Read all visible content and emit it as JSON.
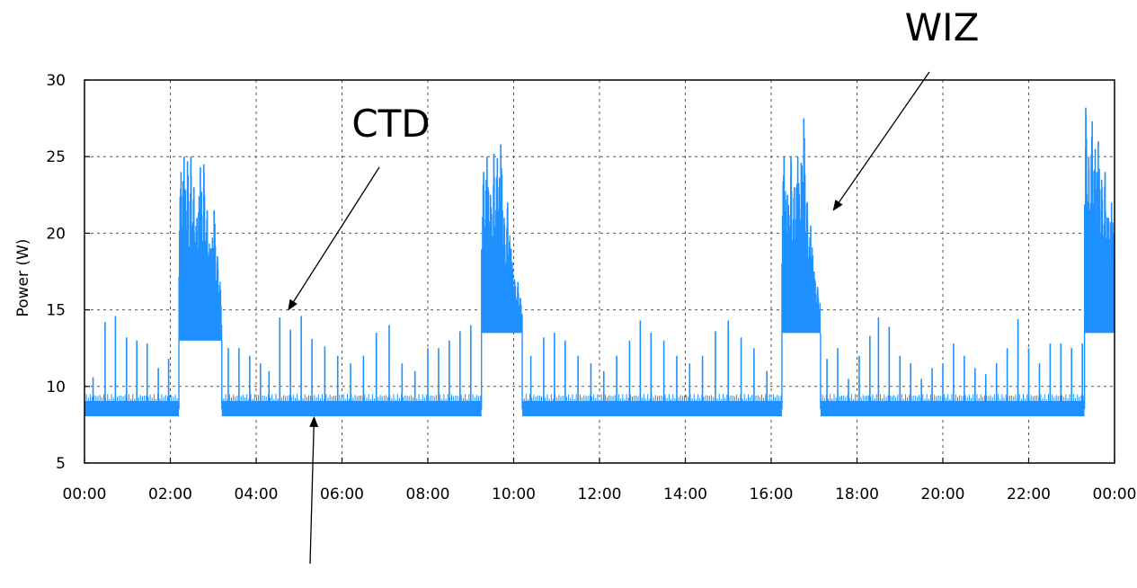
{
  "chart_data": {
    "type": "line",
    "title": "",
    "xlabel": "",
    "ylabel": "Power (W)",
    "x_unit": "time of day (hours)",
    "xlim": [
      0,
      24
    ],
    "ylim": [
      5,
      30
    ],
    "xticks": [
      {
        "value": 0,
        "label": "00:00"
      },
      {
        "value": 2,
        "label": "02:00"
      },
      {
        "value": 4,
        "label": "04:00"
      },
      {
        "value": 6,
        "label": "06:00"
      },
      {
        "value": 8,
        "label": "08:00"
      },
      {
        "value": 10,
        "label": "10:00"
      },
      {
        "value": 12,
        "label": "12:00"
      },
      {
        "value": 14,
        "label": "14:00"
      },
      {
        "value": 16,
        "label": "16:00"
      },
      {
        "value": 18,
        "label": "18:00"
      },
      {
        "value": 20,
        "label": "20:00"
      },
      {
        "value": 22,
        "label": "22:00"
      },
      {
        "value": 24,
        "label": "00:00"
      }
    ],
    "yticks": [
      5,
      10,
      15,
      20,
      25,
      30
    ],
    "grid": true,
    "grid_style": "dotted",
    "legend": "none",
    "color": "#1e90ff",
    "series": [
      {
        "baseline": 8.5,
        "spikes": [
          {
            "x": 0.2,
            "y": 10.6
          },
          {
            "x": 0.48,
            "y": 14.2
          },
          {
            "x": 0.72,
            "y": 14.6
          },
          {
            "x": 0.98,
            "y": 13.2
          },
          {
            "x": 1.22,
            "y": 13.0
          },
          {
            "x": 1.46,
            "y": 12.8
          },
          {
            "x": 1.72,
            "y": 11.2
          },
          {
            "x": 1.96,
            "y": 11.8
          },
          {
            "x": 3.35,
            "y": 12.5
          },
          {
            "x": 3.6,
            "y": 12.5
          },
          {
            "x": 3.85,
            "y": 12.0
          },
          {
            "x": 4.1,
            "y": 11.5
          },
          {
            "x": 4.3,
            "y": 11.0
          },
          {
            "x": 4.55,
            "y": 14.5
          },
          {
            "x": 4.8,
            "y": 13.7
          },
          {
            "x": 5.05,
            "y": 14.6
          },
          {
            "x": 5.3,
            "y": 13.1
          },
          {
            "x": 5.6,
            "y": 12.6
          },
          {
            "x": 5.9,
            "y": 12.0
          },
          {
            "x": 6.2,
            "y": 11.5
          },
          {
            "x": 6.5,
            "y": 12.0
          },
          {
            "x": 6.8,
            "y": 13.5
          },
          {
            "x": 7.1,
            "y": 14.0
          },
          {
            "x": 7.4,
            "y": 11.5
          },
          {
            "x": 7.7,
            "y": 11.0
          },
          {
            "x": 8.0,
            "y": 12.5
          },
          {
            "x": 8.25,
            "y": 12.5
          },
          {
            "x": 8.5,
            "y": 13.0
          },
          {
            "x": 8.75,
            "y": 13.6
          },
          {
            "x": 9.0,
            "y": 14.0
          },
          {
            "x": 10.4,
            "y": 12.0
          },
          {
            "x": 10.7,
            "y": 13.2
          },
          {
            "x": 10.95,
            "y": 13.5
          },
          {
            "x": 11.2,
            "y": 13.0
          },
          {
            "x": 11.5,
            "y": 12.0
          },
          {
            "x": 11.8,
            "y": 11.5
          },
          {
            "x": 12.1,
            "y": 11.0
          },
          {
            "x": 12.4,
            "y": 12.0
          },
          {
            "x": 12.7,
            "y": 13.0
          },
          {
            "x": 12.95,
            "y": 14.3
          },
          {
            "x": 13.2,
            "y": 13.5
          },
          {
            "x": 13.5,
            "y": 13.0
          },
          {
            "x": 13.8,
            "y": 12.0
          },
          {
            "x": 14.1,
            "y": 11.5
          },
          {
            "x": 14.4,
            "y": 12.0
          },
          {
            "x": 14.7,
            "y": 13.6
          },
          {
            "x": 15.0,
            "y": 14.3
          },
          {
            "x": 15.3,
            "y": 13.2
          },
          {
            "x": 15.6,
            "y": 12.5
          },
          {
            "x": 15.9,
            "y": 11.0
          },
          {
            "x": 17.3,
            "y": 11.8
          },
          {
            "x": 17.55,
            "y": 12.5
          },
          {
            "x": 17.8,
            "y": 10.5
          },
          {
            "x": 18.05,
            "y": 12.0
          },
          {
            "x": 18.3,
            "y": 13.3
          },
          {
            "x": 18.5,
            "y": 14.5
          },
          {
            "x": 18.75,
            "y": 13.9
          },
          {
            "x": 19.0,
            "y": 12.0
          },
          {
            "x": 19.25,
            "y": 11.5
          },
          {
            "x": 19.5,
            "y": 10.5
          },
          {
            "x": 19.75,
            "y": 11.2
          },
          {
            "x": 20.0,
            "y": 11.5
          },
          {
            "x": 20.25,
            "y": 12.8
          },
          {
            "x": 20.5,
            "y": 12.0
          },
          {
            "x": 20.75,
            "y": 11.2
          },
          {
            "x": 21.0,
            "y": 10.8
          },
          {
            "x": 21.25,
            "y": 11.5
          },
          {
            "x": 21.5,
            "y": 12.5
          },
          {
            "x": 21.75,
            "y": 14.4
          },
          {
            "x": 22.0,
            "y": 12.5
          },
          {
            "x": 22.25,
            "y": 11.5
          },
          {
            "x": 22.5,
            "y": 12.8
          },
          {
            "x": 22.75,
            "y": 12.8
          },
          {
            "x": 23.0,
            "y": 12.5
          },
          {
            "x": 23.25,
            "y": 12.8
          }
        ],
        "bursts": [
          {
            "start": 2.2,
            "end": 3.2,
            "low": 13.0,
            "high": 25.0,
            "peaks": [
              {
                "x": 2.25,
                "y": 24.0
              },
              {
                "x": 2.32,
                "y": 25.0
              },
              {
                "x": 2.4,
                "y": 24.7
              },
              {
                "x": 2.48,
                "y": 25.0
              },
              {
                "x": 2.55,
                "y": 23.0
              },
              {
                "x": 2.62,
                "y": 21.0
              },
              {
                "x": 2.7,
                "y": 24.3
              },
              {
                "x": 2.78,
                "y": 24.5
              },
              {
                "x": 2.86,
                "y": 21.5
              },
              {
                "x": 2.94,
                "y": 19.0
              },
              {
                "x": 3.02,
                "y": 21.5
              },
              {
                "x": 3.1,
                "y": 18.5
              },
              {
                "x": 3.17,
                "y": 15.2
              }
            ]
          },
          {
            "start": 9.25,
            "end": 10.2,
            "low": 13.5,
            "high": 25.8,
            "peaks": [
              {
                "x": 9.3,
                "y": 24.0
              },
              {
                "x": 9.38,
                "y": 25.0
              },
              {
                "x": 9.46,
                "y": 22.5
              },
              {
                "x": 9.54,
                "y": 25.2
              },
              {
                "x": 9.62,
                "y": 24.9
              },
              {
                "x": 9.7,
                "y": 25.8
              },
              {
                "x": 9.78,
                "y": 21.0
              },
              {
                "x": 9.86,
                "y": 22.0
              },
              {
                "x": 9.94,
                "y": 19.0
              },
              {
                "x": 10.02,
                "y": 17.0
              },
              {
                "x": 10.1,
                "y": 16.8
              },
              {
                "x": 10.17,
                "y": 15.2
              }
            ]
          },
          {
            "start": 16.25,
            "end": 17.15,
            "low": 13.5,
            "high": 27.5,
            "peaks": [
              {
                "x": 16.3,
                "y": 25.0
              },
              {
                "x": 16.38,
                "y": 22.5
              },
              {
                "x": 16.46,
                "y": 25.0
              },
              {
                "x": 16.54,
                "y": 23.0
              },
              {
                "x": 16.62,
                "y": 25.0
              },
              {
                "x": 16.7,
                "y": 24.6
              },
              {
                "x": 16.76,
                "y": 27.5
              },
              {
                "x": 16.84,
                "y": 22.0
              },
              {
                "x": 16.92,
                "y": 20.5
              },
              {
                "x": 17.0,
                "y": 17.5
              },
              {
                "x": 17.08,
                "y": 16.5
              },
              {
                "x": 17.13,
                "y": 14.6
              }
            ]
          },
          {
            "start": 23.3,
            "end": 24.0,
            "low": 13.5,
            "high": 28.2,
            "peaks": [
              {
                "x": 23.33,
                "y": 28.2
              },
              {
                "x": 23.4,
                "y": 25.0
              },
              {
                "x": 23.48,
                "y": 27.3
              },
              {
                "x": 23.55,
                "y": 25.5
              },
              {
                "x": 23.62,
                "y": 26.0
              },
              {
                "x": 23.7,
                "y": 23.5
              },
              {
                "x": 23.78,
                "y": 24.0
              },
              {
                "x": 23.86,
                "y": 21.0
              },
              {
                "x": 23.93,
                "y": 22.0
              },
              {
                "x": 23.98,
                "y": 20.0
              }
            ]
          }
        ]
      }
    ],
    "annotations": [
      {
        "text": "CTD",
        "points_to": {
          "x": 4.75,
          "y": 15.0
        }
      },
      {
        "text": "WIZ",
        "points_to": {
          "x": 17.45,
          "y": 21.5
        }
      },
      {
        "text": "",
        "points_to": {
          "x": 5.35,
          "y": 8.0
        }
      }
    ]
  }
}
